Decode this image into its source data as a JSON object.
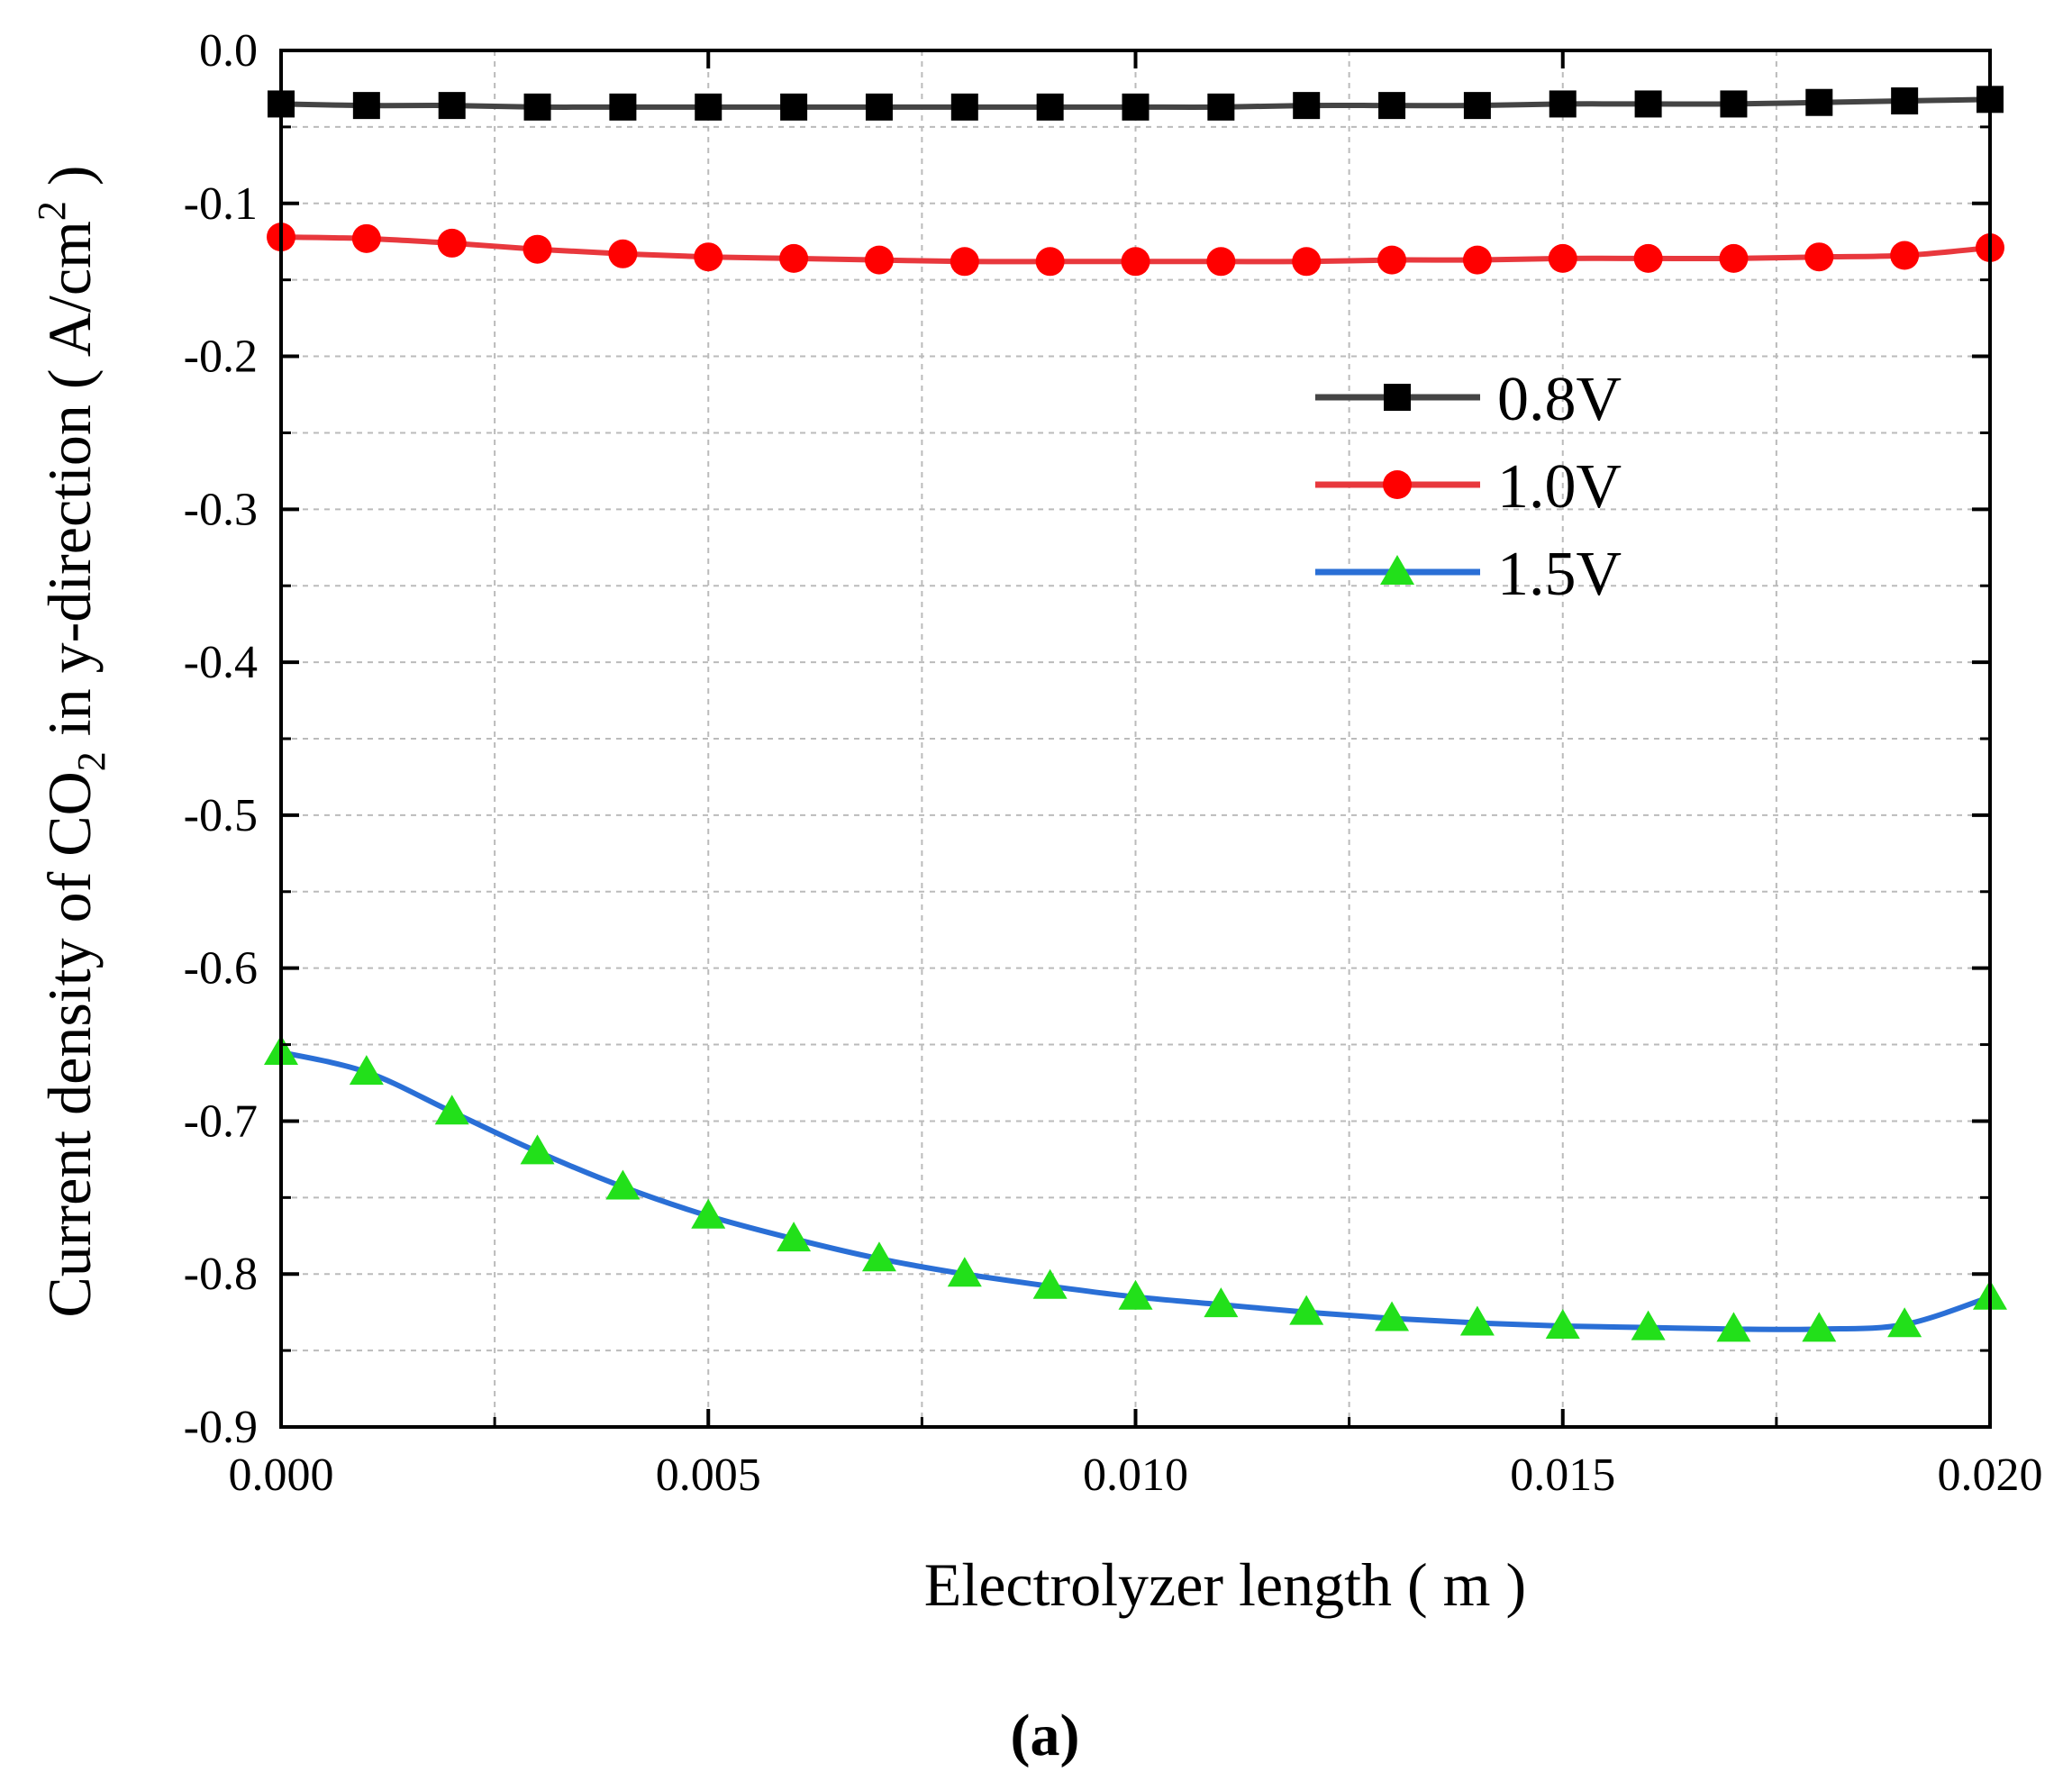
{
  "chart_data": {
    "type": "line",
    "title": "",
    "xlabel": "Electrolyzer length ( m )",
    "ylabel_parts": [
      "Current density of CO",
      "2",
      " in y-direction ( A/cm",
      "2",
      " )"
    ],
    "xlim": [
      0,
      0.02
    ],
    "ylim": [
      -0.9,
      0
    ],
    "xticks": [
      0,
      0.005,
      0.01,
      0.015,
      0.02
    ],
    "xtick_labels": [
      "0.000",
      "0.005",
      "0.010",
      "0.015",
      "0.020"
    ],
    "yticks": [
      0,
      -0.1,
      -0.2,
      -0.3,
      -0.4,
      -0.5,
      -0.6,
      -0.7,
      -0.8,
      -0.9
    ],
    "ytick_labels": [
      "0.0",
      "-0.1",
      "-0.2",
      "-0.3",
      "-0.4",
      "-0.5",
      "-0.6",
      "-0.7",
      "-0.8",
      "-0.9"
    ],
    "grid": true,
    "legend_position": "upper-right-center",
    "x": [
      0,
      0.001,
      0.002,
      0.003,
      0.004,
      0.005,
      0.006,
      0.007,
      0.008,
      0.009,
      0.01,
      0.011,
      0.012,
      0.013,
      0.014,
      0.015,
      0.016,
      0.017,
      0.018,
      0.019,
      0.02
    ],
    "series": [
      {
        "name": "0.8V",
        "marker": "square",
        "line_color": "#444444",
        "marker_color": "#000000",
        "values": [
          -0.035,
          -0.036,
          -0.036,
          -0.037,
          -0.037,
          -0.037,
          -0.037,
          -0.037,
          -0.037,
          -0.037,
          -0.037,
          -0.037,
          -0.036,
          -0.036,
          -0.036,
          -0.035,
          -0.035,
          -0.035,
          -0.034,
          -0.033,
          -0.032
        ]
      },
      {
        "name": "1.0V",
        "marker": "circle",
        "line_color": "#e8383d",
        "marker_color": "#ff0000",
        "values": [
          -0.122,
          -0.123,
          -0.126,
          -0.13,
          -0.133,
          -0.135,
          -0.136,
          -0.137,
          -0.138,
          -0.138,
          -0.138,
          -0.138,
          -0.138,
          -0.137,
          -0.137,
          -0.136,
          -0.136,
          -0.136,
          -0.135,
          -0.134,
          -0.129
        ]
      },
      {
        "name": "1.5V",
        "marker": "triangle",
        "line_color": "#2a6fd6",
        "marker_color": "#22e01a",
        "values": [
          -0.655,
          -0.668,
          -0.694,
          -0.72,
          -0.743,
          -0.762,
          -0.777,
          -0.79,
          -0.8,
          -0.808,
          -0.815,
          -0.82,
          -0.825,
          -0.829,
          -0.832,
          -0.834,
          -0.835,
          -0.836,
          -0.836,
          -0.833,
          -0.815
        ]
      }
    ]
  },
  "caption": "(a)"
}
